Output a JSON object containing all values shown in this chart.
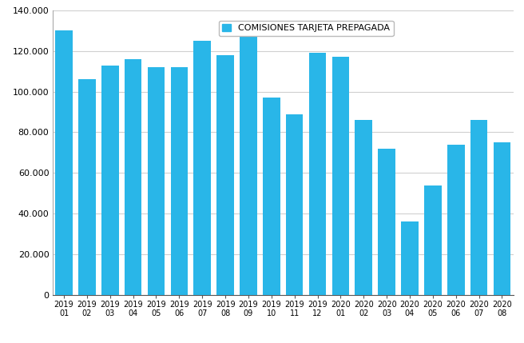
{
  "categories": [
    "2019\n01",
    "2019\n02",
    "2019\n03",
    "2019\n04",
    "2019\n05",
    "2019\n06",
    "2019\n07",
    "2019\n08",
    "2019\n09",
    "2019\n10",
    "2019\n11",
    "2019\n12",
    "2020\n01",
    "2020\n02",
    "2020\n03",
    "2020\n04",
    "2020\n05",
    "2020\n06",
    "2020\n07",
    "2020\n08"
  ],
  "values": [
    130000,
    106000,
    113000,
    116000,
    112000,
    112000,
    125000,
    118000,
    127000,
    97000,
    89000,
    119000,
    117000,
    86000,
    72000,
    36000,
    54000,
    74000,
    86000,
    75000
  ],
  "bar_color": "#29b6e8",
  "legend_label": "COMISIONES TARJETA PREPAGADA",
  "ylim": [
    0,
    140000
  ],
  "yticks": [
    0,
    20000,
    40000,
    60000,
    80000,
    100000,
    120000,
    140000
  ],
  "background_color": "#ffffff",
  "grid_color": "#d0d0d0"
}
